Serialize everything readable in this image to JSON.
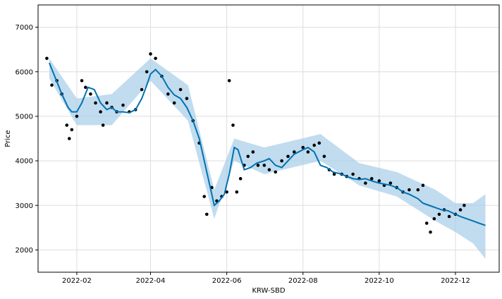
{
  "chart_data": {
    "type": "line",
    "xlabel": "KRW-SBD",
    "ylabel": "Price",
    "xlim": [
      "2022-01-01",
      "2023-01-05"
    ],
    "ylim": [
      1500,
      7500
    ],
    "grid": true,
    "x_ticks": [
      "2022-02",
      "2022-04",
      "2022-06",
      "2022-08",
      "2022-10",
      "2022-12"
    ],
    "y_ticks": [
      2000,
      3000,
      4000,
      5000,
      6000,
      7000
    ],
    "colors": {
      "forecast": "#0072B2",
      "band": "#a6cde8",
      "observed": "#000000",
      "grid": "#dddddd"
    },
    "series": [
      {
        "kind": "forecast",
        "x": [
          "2022-01-10",
          "2022-01-15",
          "2022-01-20",
          "2022-01-25",
          "2022-01-28",
          "2022-02-01",
          "2022-02-05",
          "2022-02-10",
          "2022-02-15",
          "2022-02-20",
          "2022-02-25",
          "2022-03-01",
          "2022-03-05",
          "2022-03-10",
          "2022-03-15",
          "2022-03-20",
          "2022-03-25",
          "2022-03-29",
          "2022-04-01",
          "2022-04-05",
          "2022-04-10",
          "2022-04-15",
          "2022-04-20",
          "2022-04-25",
          "2022-04-30",
          "2022-05-05",
          "2022-05-10",
          "2022-05-14",
          "2022-05-18",
          "2022-05-22",
          "2022-05-26",
          "2022-05-30",
          "2022-06-03",
          "2022-06-07",
          "2022-06-10",
          "2022-06-15",
          "2022-06-20",
          "2022-06-25",
          "2022-07-01",
          "2022-07-05",
          "2022-07-10",
          "2022-07-15",
          "2022-07-20",
          "2022-07-25",
          "2022-08-01",
          "2022-08-05",
          "2022-08-10",
          "2022-08-15",
          "2022-08-20",
          "2022-08-25",
          "2022-09-01",
          "2022-09-05",
          "2022-09-10",
          "2022-09-15",
          "2022-09-20",
          "2022-09-25",
          "2022-10-01",
          "2022-10-05",
          "2022-10-10",
          "2022-10-15",
          "2022-10-20",
          "2022-10-25",
          "2022-11-01",
          "2022-11-05",
          "2022-11-10",
          "2022-11-15",
          "2022-11-20",
          "2022-11-25",
          "2022-12-01",
          "2022-12-05",
          "2022-12-10",
          "2022-12-15",
          "2022-12-20",
          "2022-12-25"
        ],
        "y": [
          6200,
          5850,
          5500,
          5200,
          5100,
          5100,
          5300,
          5650,
          5600,
          5300,
          5150,
          5200,
          5100,
          5100,
          5080,
          5150,
          5400,
          5700,
          5950,
          6050,
          5900,
          5650,
          5480,
          5400,
          5200,
          4900,
          4500,
          4000,
          3500,
          3000,
          3100,
          3250,
          3700,
          4300,
          4250,
          3800,
          3850,
          3950,
          4000,
          4050,
          3900,
          3850,
          4000,
          4150,
          4250,
          4300,
          4200,
          3900,
          3850,
          3750,
          3700,
          3650,
          3600,
          3580,
          3600,
          3550,
          3500,
          3480,
          3450,
          3400,
          3300,
          3250,
          3150,
          3050,
          3000,
          2950,
          2900,
          2880,
          2800,
          2750,
          2700,
          2650,
          2600,
          2550
        ]
      },
      {
        "kind": "band",
        "x": [
          "2022-01-10",
          "2022-02-01",
          "2022-03-01",
          "2022-04-01",
          "2022-05-01",
          "2022-05-22",
          "2022-06-07",
          "2022-07-01",
          "2022-08-15",
          "2022-09-15",
          "2022-10-15",
          "2022-11-15",
          "2022-12-01",
          "2022-12-15",
          "2022-12-25"
        ],
        "upper": [
          6300,
          5400,
          5500,
          6300,
          5700,
          3350,
          4500,
          4300,
          4600,
          3950,
          3750,
          3350,
          3050,
          3050,
          3250
        ],
        "lower": [
          5850,
          4800,
          4800,
          5800,
          4900,
          2700,
          4000,
          3700,
          4000,
          3450,
          3200,
          2650,
          2400,
          2150,
          1800
        ]
      },
      {
        "kind": "observed",
        "x": [
          "2022-01-08",
          "2022-01-12",
          "2022-01-16",
          "2022-01-20",
          "2022-01-24",
          "2022-01-26",
          "2022-01-28",
          "2022-02-01",
          "2022-02-05",
          "2022-02-08",
          "2022-02-12",
          "2022-02-16",
          "2022-02-20",
          "2022-02-22",
          "2022-02-25",
          "2022-03-01",
          "2022-03-05",
          "2022-03-10",
          "2022-03-15",
          "2022-03-20",
          "2022-03-25",
          "2022-03-29",
          "2022-04-01",
          "2022-04-05",
          "2022-04-10",
          "2022-04-15",
          "2022-04-20",
          "2022-04-25",
          "2022-04-30",
          "2022-05-05",
          "2022-05-10",
          "2022-05-14",
          "2022-05-16",
          "2022-05-20",
          "2022-05-24",
          "2022-05-28",
          "2022-06-01",
          "2022-06-03",
          "2022-06-06",
          "2022-06-09",
          "2022-06-12",
          "2022-06-15",
          "2022-06-18",
          "2022-06-22",
          "2022-06-26",
          "2022-07-01",
          "2022-07-05",
          "2022-07-10",
          "2022-07-15",
          "2022-07-20",
          "2022-07-25",
          "2022-08-01",
          "2022-08-05",
          "2022-08-10",
          "2022-08-14",
          "2022-08-18",
          "2022-08-22",
          "2022-08-26",
          "2022-09-01",
          "2022-09-05",
          "2022-09-10",
          "2022-09-15",
          "2022-09-20",
          "2022-09-25",
          "2022-10-01",
          "2022-10-05",
          "2022-10-10",
          "2022-10-15",
          "2022-10-20",
          "2022-10-25",
          "2022-11-01",
          "2022-11-05",
          "2022-11-08",
          "2022-11-11",
          "2022-11-14",
          "2022-11-18",
          "2022-11-22",
          "2022-11-26",
          "2022-12-01",
          "2022-12-05",
          "2022-12-08"
        ],
        "y": [
          6300,
          5700,
          5800,
          5500,
          4800,
          4500,
          4700,
          5000,
          5800,
          5650,
          5500,
          5300,
          5100,
          4800,
          5300,
          5200,
          5100,
          5250,
          5100,
          5150,
          5600,
          6000,
          6400,
          6300,
          5900,
          5500,
          5300,
          5600,
          5400,
          4900,
          4400,
          3200,
          2800,
          3400,
          3100,
          3200,
          3300,
          5800,
          4800,
          3300,
          3600,
          3900,
          4100,
          4200,
          3900,
          3900,
          3800,
          3750,
          4000,
          4100,
          4200,
          4300,
          4200,
          4350,
          4400,
          4100,
          3800,
          3700,
          3700,
          3650,
          3700,
          3600,
          3500,
          3600,
          3550,
          3450,
          3500,
          3400,
          3300,
          3350,
          3350,
          3450,
          2600,
          2400,
          2700,
          2800,
          2900,
          2750,
          2800,
          2900,
          3000
        ]
      }
    ]
  }
}
